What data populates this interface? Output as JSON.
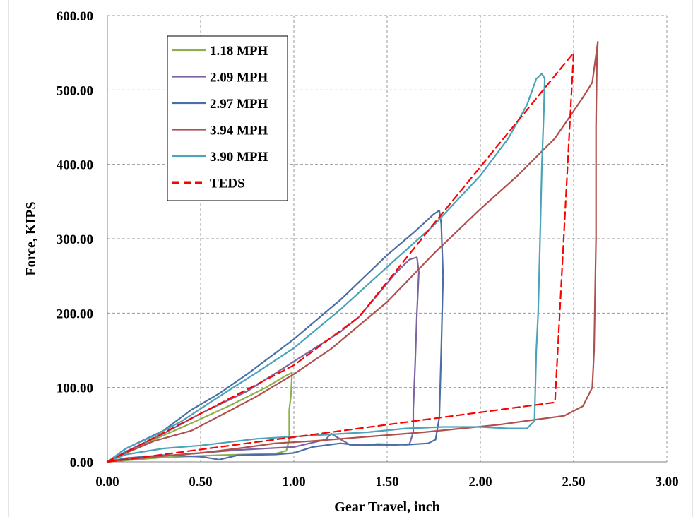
{
  "chart_data": {
    "type": "line",
    "xlabel": "Gear Travel, inch",
    "ylabel": "Force, KIPS",
    "xlim": [
      0,
      3
    ],
    "ylim": [
      0,
      600
    ],
    "xticks": [
      "0.00",
      "0.50",
      "1.00",
      "1.50",
      "2.00",
      "2.50",
      "3.00"
    ],
    "yticks": [
      "0.00",
      "100.00",
      "200.00",
      "300.00",
      "400.00",
      "500.00",
      "600.00"
    ],
    "grid": "dashed",
    "legend_position": "top-left",
    "series": [
      {
        "name": "1.18 MPH",
        "color": "#8db04f",
        "dashed": false,
        "points": [
          [
            0,
            0
          ],
          [
            0.1,
            12
          ],
          [
            0.25,
            30
          ],
          [
            0.45,
            52
          ],
          [
            0.65,
            75
          ],
          [
            0.85,
            100
          ],
          [
            0.95,
            115
          ],
          [
            0.99,
            120
          ],
          [
            0.985,
            90
          ],
          [
            0.975,
            70
          ],
          [
            0.975,
            30
          ],
          [
            0.96,
            15
          ],
          [
            0.9,
            11
          ],
          [
            0.6,
            9
          ],
          [
            0.3,
            6
          ],
          [
            0.1,
            2
          ],
          [
            0,
            0
          ]
        ]
      },
      {
        "name": "2.09 MPH",
        "color": "#7a64a2",
        "dashed": false,
        "points": [
          [
            0,
            0
          ],
          [
            0.1,
            14
          ],
          [
            0.3,
            38
          ],
          [
            0.5,
            65
          ],
          [
            0.75,
            95
          ],
          [
            1.0,
            135
          ],
          [
            1.25,
            175
          ],
          [
            1.35,
            195
          ],
          [
            1.45,
            225
          ],
          [
            1.55,
            255
          ],
          [
            1.62,
            272
          ],
          [
            1.66,
            275
          ],
          [
            1.67,
            255
          ],
          [
            1.66,
            200
          ],
          [
            1.65,
            130
          ],
          [
            1.64,
            70
          ],
          [
            1.64,
            40
          ],
          [
            1.62,
            24
          ],
          [
            1.5,
            22
          ],
          [
            1.3,
            23
          ],
          [
            1.2,
            38
          ],
          [
            1.17,
            30
          ],
          [
            1.0,
            20
          ],
          [
            0.7,
            16
          ],
          [
            0.5,
            12
          ],
          [
            0.3,
            8
          ],
          [
            0.1,
            3
          ],
          [
            0,
            0
          ]
        ]
      },
      {
        "name": "2.97 MPH",
        "color": "#4a6fa5",
        "dashed": false,
        "points": [
          [
            0,
            0
          ],
          [
            0.1,
            18
          ],
          [
            0.2,
            30
          ],
          [
            0.3,
            42
          ],
          [
            0.45,
            70
          ],
          [
            0.6,
            92
          ],
          [
            0.75,
            118
          ],
          [
            1.0,
            165
          ],
          [
            1.25,
            218
          ],
          [
            1.5,
            278
          ],
          [
            1.65,
            310
          ],
          [
            1.75,
            333
          ],
          [
            1.78,
            338
          ],
          [
            1.79,
            320
          ],
          [
            1.8,
            250
          ],
          [
            1.79,
            150
          ],
          [
            1.78,
            60
          ],
          [
            1.76,
            30
          ],
          [
            1.72,
            25
          ],
          [
            1.6,
            23
          ],
          [
            1.45,
            24
          ],
          [
            1.35,
            22
          ],
          [
            1.25,
            25
          ],
          [
            1.1,
            20
          ],
          [
            1.0,
            12
          ],
          [
            0.9,
            10
          ],
          [
            0.7,
            9
          ],
          [
            0.6,
            3
          ],
          [
            0.5,
            7
          ],
          [
            0.3,
            9
          ],
          [
            0.1,
            5
          ],
          [
            0,
            0
          ]
        ]
      },
      {
        "name": "3.94 MPH",
        "color": "#b0504d",
        "dashed": false,
        "points": [
          [
            0,
            0
          ],
          [
            0.1,
            12
          ],
          [
            0.25,
            28
          ],
          [
            0.45,
            42
          ],
          [
            0.65,
            68
          ],
          [
            0.8,
            88
          ],
          [
            1.0,
            118
          ],
          [
            1.2,
            152
          ],
          [
            1.5,
            215
          ],
          [
            1.75,
            280
          ],
          [
            2.0,
            340
          ],
          [
            2.2,
            385
          ],
          [
            2.4,
            435
          ],
          [
            2.55,
            490
          ],
          [
            2.6,
            510
          ],
          [
            2.63,
            565
          ],
          [
            2.625,
            540
          ],
          [
            2.62,
            450
          ],
          [
            2.62,
            300
          ],
          [
            2.61,
            150
          ],
          [
            2.6,
            100
          ],
          [
            2.55,
            75
          ],
          [
            2.45,
            62
          ],
          [
            2.3,
            57
          ],
          [
            2.1,
            50
          ],
          [
            1.9,
            45
          ],
          [
            1.7,
            40
          ],
          [
            1.5,
            36
          ],
          [
            1.3,
            32
          ],
          [
            1.1,
            28
          ],
          [
            0.9,
            25
          ],
          [
            0.7,
            18
          ],
          [
            0.5,
            12
          ],
          [
            0.3,
            8
          ],
          [
            0.1,
            3
          ],
          [
            0,
            0
          ]
        ]
      },
      {
        "name": "3.90 MPH",
        "color": "#4aa3b8",
        "dashed": false,
        "points": [
          [
            0,
            0
          ],
          [
            0.1,
            18
          ],
          [
            0.25,
            35
          ],
          [
            0.4,
            55
          ],
          [
            0.6,
            88
          ],
          [
            0.8,
            120
          ],
          [
            1.0,
            153
          ],
          [
            1.25,
            205
          ],
          [
            1.5,
            262
          ],
          [
            1.75,
            318
          ],
          [
            2.0,
            385
          ],
          [
            2.15,
            435
          ],
          [
            2.25,
            480
          ],
          [
            2.3,
            515
          ],
          [
            2.33,
            522
          ],
          [
            2.345,
            515
          ],
          [
            2.34,
            470
          ],
          [
            2.33,
            400
          ],
          [
            2.32,
            300
          ],
          [
            2.31,
            200
          ],
          [
            2.3,
            150
          ],
          [
            2.29,
            55
          ],
          [
            2.25,
            45
          ],
          [
            2.15,
            45
          ],
          [
            2.0,
            47
          ],
          [
            1.8,
            47
          ],
          [
            1.6,
            45
          ],
          [
            1.4,
            40
          ],
          [
            1.2,
            37
          ],
          [
            1.0,
            34
          ],
          [
            0.8,
            31
          ],
          [
            0.5,
            22
          ],
          [
            0.3,
            18
          ],
          [
            0.1,
            10
          ],
          [
            0,
            0
          ]
        ]
      },
      {
        "name": "TEDS",
        "color": "#ff0000",
        "dashed": true,
        "points": [
          [
            0,
            0
          ],
          [
            1.0,
            130
          ],
          [
            1.35,
            195
          ],
          [
            1.75,
            320
          ],
          [
            2.5,
            550
          ],
          [
            2.4,
            80
          ],
          [
            0,
            0
          ]
        ]
      }
    ]
  }
}
